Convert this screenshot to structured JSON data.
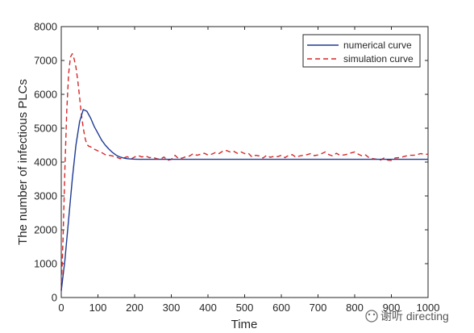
{
  "chart_data": {
    "type": "line",
    "xlabel": "Time",
    "ylabel": "The number of infectious PLCs",
    "xlim": [
      0,
      1000
    ],
    "ylim": [
      0,
      8000
    ],
    "x_ticks": [
      0,
      100,
      200,
      300,
      400,
      500,
      600,
      700,
      800,
      900,
      1000
    ],
    "y_ticks": [
      0,
      1000,
      2000,
      3000,
      4000,
      5000,
      6000,
      7000,
      8000
    ],
    "grid": false,
    "legend_position": "top-right",
    "series": [
      {
        "name": "numerical curve",
        "color": "#1f3a93",
        "style": "solid",
        "x": [
          0,
          10,
          20,
          30,
          40,
          50,
          60,
          70,
          80,
          90,
          100,
          110,
          120,
          130,
          140,
          150,
          160,
          170,
          180,
          190,
          200,
          210,
          220,
          240,
          260,
          300,
          400,
          500,
          600,
          700,
          800,
          900,
          1000
        ],
        "y": [
          200,
          1100,
          2300,
          3500,
          4500,
          5200,
          5550,
          5500,
          5300,
          5050,
          4850,
          4650,
          4500,
          4380,
          4280,
          4200,
          4150,
          4120,
          4100,
          4090,
          4085,
          4080,
          4080,
          4080,
          4080,
          4080,
          4080,
          4080,
          4080,
          4080,
          4080,
          4080,
          4080
        ]
      },
      {
        "name": "simulation curve",
        "color": "#d62728",
        "style": "dashed",
        "x": [
          0,
          5,
          10,
          15,
          20,
          25,
          30,
          35,
          40,
          45,
          50,
          55,
          60,
          65,
          70,
          75,
          80,
          90,
          100,
          110,
          120,
          130,
          140,
          150,
          160,
          170,
          180,
          190,
          200,
          210,
          220,
          230,
          240,
          250,
          260,
          270,
          280,
          290,
          300,
          310,
          320,
          330,
          340,
          350,
          360,
          370,
          380,
          390,
          400,
          410,
          420,
          430,
          440,
          450,
          460,
          470,
          480,
          490,
          500,
          510,
          520,
          530,
          540,
          550,
          560,
          570,
          580,
          590,
          600,
          610,
          620,
          630,
          640,
          650,
          660,
          670,
          680,
          690,
          700,
          710,
          720,
          730,
          740,
          750,
          760,
          770,
          780,
          790,
          800,
          810,
          820,
          830,
          840,
          850,
          860,
          870,
          880,
          890,
          900,
          910,
          920,
          930,
          940,
          950,
          960,
          970,
          980,
          990,
          1000
        ],
        "y": [
          200,
          1800,
          3800,
          5500,
          6600,
          7100,
          7200,
          7050,
          6800,
          6400,
          5900,
          5400,
          5000,
          4700,
          4520,
          4470,
          4450,
          4380,
          4330,
          4280,
          4220,
          4200,
          4180,
          4150,
          4100,
          4120,
          4160,
          4090,
          4150,
          4190,
          4150,
          4180,
          4130,
          4140,
          4100,
          4080,
          4150,
          4050,
          4080,
          4200,
          4100,
          4120,
          4160,
          4180,
          4250,
          4200,
          4230,
          4260,
          4210,
          4230,
          4280,
          4250,
          4320,
          4340,
          4300,
          4320,
          4260,
          4300,
          4250,
          4260,
          4150,
          4200,
          4180,
          4120,
          4200,
          4140,
          4170,
          4160,
          4200,
          4130,
          4200,
          4220,
          4140,
          4180,
          4200,
          4220,
          4250,
          4190,
          4210,
          4250,
          4300,
          4220,
          4180,
          4260,
          4200,
          4210,
          4230,
          4270,
          4300,
          4230,
          4180,
          4210,
          4120,
          4100,
          4080,
          4060,
          4120,
          4060,
          4050,
          4120,
          4130,
          4150,
          4180,
          4200,
          4200,
          4220,
          4250,
          4230,
          4230
        ]
      }
    ]
  },
  "watermark": {
    "text": "谢听 directing"
  }
}
